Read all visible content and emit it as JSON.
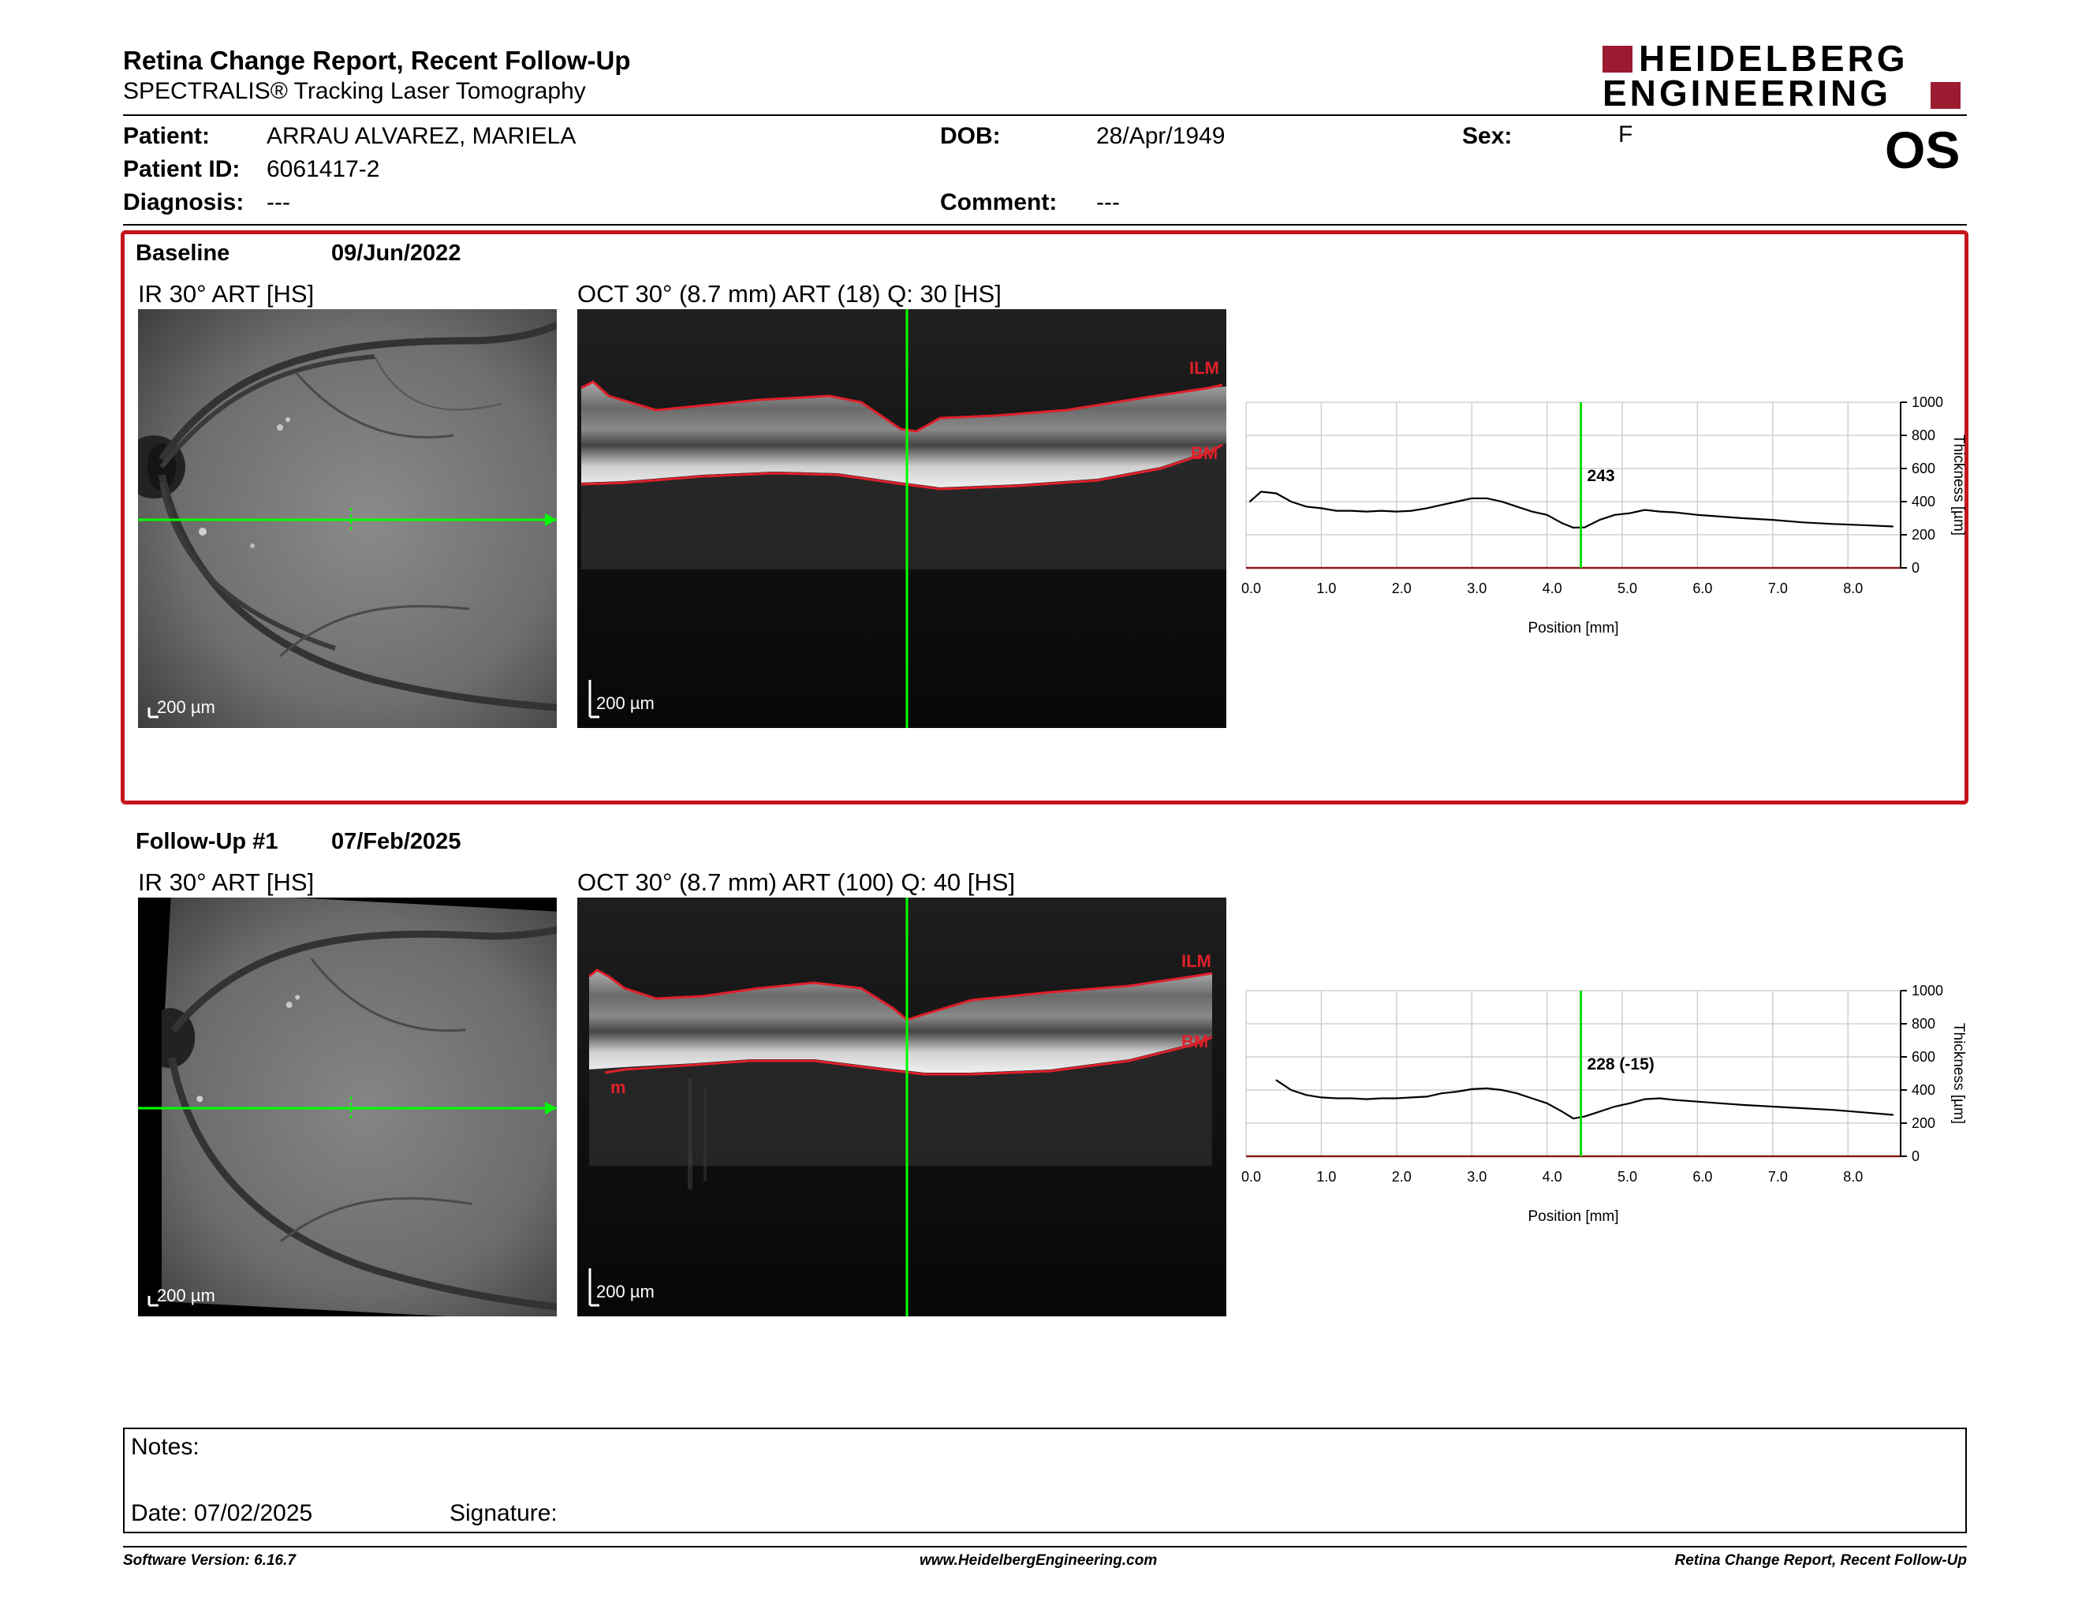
{
  "header": {
    "title": "Retina Change Report, Recent Follow-Up",
    "subtitle": "SPECTRALIS® Tracking Laser Tomography",
    "logo_line1": "HEIDELBERG",
    "logo_line2": "ENGINEERING",
    "eye": "OS"
  },
  "patient": {
    "patient_label": "Patient:",
    "patient_value": "ARRAU ALVAREZ, MARIELA",
    "id_label": "Patient ID:",
    "id_value": "6061417-2",
    "diagnosis_label": "Diagnosis:",
    "diagnosis_value": "---",
    "dob_label": "DOB:",
    "dob_value": "28/Apr/1949",
    "comment_label": "Comment:",
    "comment_value": "---",
    "sex_label": "Sex:",
    "sex_value": "F"
  },
  "baseline": {
    "label": "Baseline",
    "date": "09/Jun/2022",
    "ir_title": "IR 30° ART [HS]",
    "oct_title": "OCT 30° (8.7 mm) ART (18) Q: 30 [HS]",
    "ir_scale": "200 µm",
    "oct_scale": "200 µm",
    "ilm_label": "ILM",
    "bm_label": "BM",
    "cursor_value": "243"
  },
  "followup": {
    "label": "Follow-Up #1",
    "date": "07/Feb/2025",
    "ir_title": "IR 30° ART [HS]",
    "oct_title": "OCT 30° (8.7 mm) ART (100) Q: 40 [HS]",
    "ir_scale": "200 µm",
    "oct_scale": "200 µm",
    "ilm_label": "ILM",
    "bm_label": "BM",
    "m_label": "m",
    "cursor_value": "228 (-15)"
  },
  "colors": {
    "frame_red": "#c4161c",
    "logo_red": "#9b1b30",
    "green": "#00ff00",
    "layer_red": "#e0202a"
  },
  "chart_data": [
    {
      "type": "line",
      "name": "baseline-thickness",
      "xlabel": "Position [mm]",
      "ylabel": "Thickness [µm]",
      "xlim": [
        0,
        8.7
      ],
      "ylim": [
        0,
        1000
      ],
      "xticks": [
        "0.0",
        "1.0",
        "2.0",
        "3.0",
        "4.0",
        "5.0",
        "6.0",
        "7.0",
        "8.0"
      ],
      "yticks": [
        "0",
        "200",
        "400",
        "600",
        "800",
        "1000"
      ],
      "cursor_x": 4.45,
      "grid": true,
      "x": [
        0.05,
        0.2,
        0.4,
        0.6,
        0.8,
        1.0,
        1.2,
        1.4,
        1.6,
        1.8,
        2.0,
        2.2,
        2.4,
        2.6,
        2.8,
        3.0,
        3.2,
        3.4,
        3.6,
        3.8,
        4.0,
        4.2,
        4.35,
        4.5,
        4.7,
        4.9,
        5.1,
        5.3,
        5.5,
        5.7,
        6.0,
        6.3,
        6.6,
        7.0,
        7.4,
        7.8,
        8.2,
        8.6
      ],
      "y": [
        400,
        460,
        450,
        400,
        370,
        360,
        345,
        345,
        340,
        345,
        340,
        345,
        360,
        380,
        400,
        420,
        420,
        400,
        370,
        340,
        320,
        270,
        243,
        245,
        290,
        320,
        330,
        350,
        340,
        335,
        320,
        310,
        300,
        290,
        275,
        265,
        258,
        250
      ]
    },
    {
      "type": "line",
      "name": "followup-thickness",
      "xlabel": "Position [mm]",
      "ylabel": "Thickness [µm]",
      "xlim": [
        0,
        8.7
      ],
      "ylim": [
        0,
        1000
      ],
      "xticks": [
        "0.0",
        "1.0",
        "2.0",
        "3.0",
        "4.0",
        "5.0",
        "6.0",
        "7.0",
        "8.0"
      ],
      "yticks": [
        "0",
        "200",
        "400",
        "600",
        "800",
        "1000"
      ],
      "cursor_x": 4.45,
      "grid": true,
      "x": [
        0.4,
        0.6,
        0.8,
        1.0,
        1.2,
        1.4,
        1.6,
        1.8,
        2.0,
        2.2,
        2.4,
        2.6,
        2.8,
        3.0,
        3.2,
        3.4,
        3.6,
        3.8,
        4.0,
        4.2,
        4.35,
        4.5,
        4.7,
        4.9,
        5.1,
        5.3,
        5.5,
        5.7,
        6.0,
        6.3,
        6.6,
        7.0,
        7.4,
        7.8,
        8.2,
        8.6
      ],
      "y": [
        460,
        400,
        370,
        355,
        350,
        350,
        345,
        350,
        350,
        355,
        360,
        380,
        390,
        405,
        410,
        400,
        380,
        350,
        320,
        270,
        228,
        240,
        270,
        300,
        320,
        345,
        350,
        340,
        330,
        320,
        310,
        300,
        290,
        280,
        265,
        250
      ]
    }
  ],
  "notes": {
    "notes_label": "Notes:",
    "date_label": "Date: 07/02/2025",
    "signature_label": "Signature:"
  },
  "footer": {
    "version": "Software Version: 6.16.7",
    "url": "www.HeidelbergEngineering.com",
    "report": "Retina Change Report, Recent Follow-Up"
  }
}
